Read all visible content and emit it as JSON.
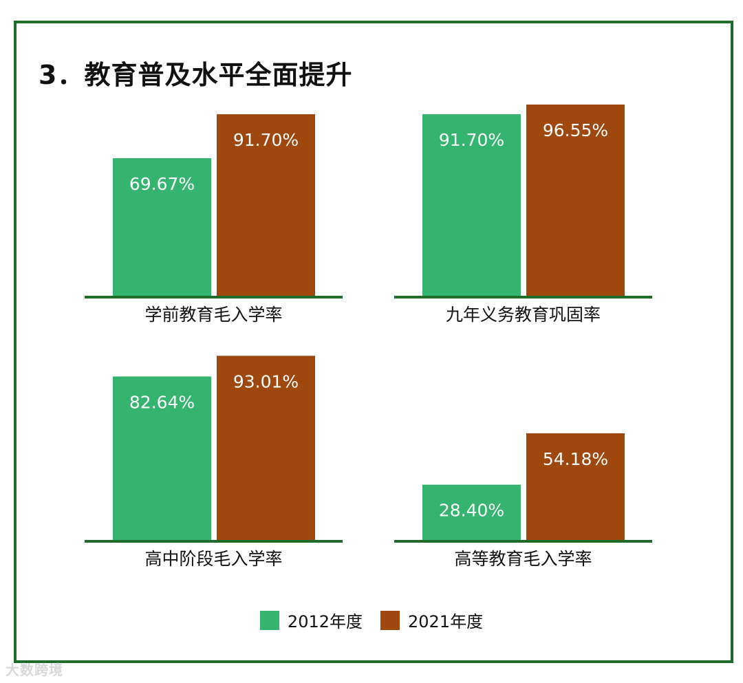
{
  "page_title": "3．教育普及水平全面提升",
  "colors": {
    "series_2012": "#34b46f",
    "series_2021": "#9e480e",
    "baseline": "#1e6b2a",
    "frame": "#1e6b2a"
  },
  "legend": [
    {
      "label": "2012年度",
      "color": "#34b46f"
    },
    {
      "label": "2021年度",
      "color": "#9e480e"
    }
  ],
  "watermark": "大数跨境",
  "chart_data": [
    {
      "type": "bar",
      "category": "学前教育毛入学率",
      "series": [
        {
          "name": "2012年度",
          "value": 69.67,
          "label": "69.67%"
        },
        {
          "name": "2021年度",
          "value": 91.7,
          "label": "91.70%"
        }
      ]
    },
    {
      "type": "bar",
      "category": "九年义务教育巩固率",
      "series": [
        {
          "name": "2012年度",
          "value": 91.7,
          "label": "91.70%"
        },
        {
          "name": "2021年度",
          "value": 96.55,
          "label": "96.55%"
        }
      ]
    },
    {
      "type": "bar",
      "category": "高中阶段毛入学率",
      "series": [
        {
          "name": "2012年度",
          "value": 82.64,
          "label": "82.64%"
        },
        {
          "name": "2021年度",
          "value": 93.01,
          "label": "93.01%"
        }
      ]
    },
    {
      "type": "bar",
      "category": "高等教育毛入学率",
      "series": [
        {
          "name": "2012年度",
          "value": 28.4,
          "label": "28.40%"
        },
        {
          "name": "2021年度",
          "value": 54.18,
          "label": "54.18%"
        }
      ]
    }
  ]
}
